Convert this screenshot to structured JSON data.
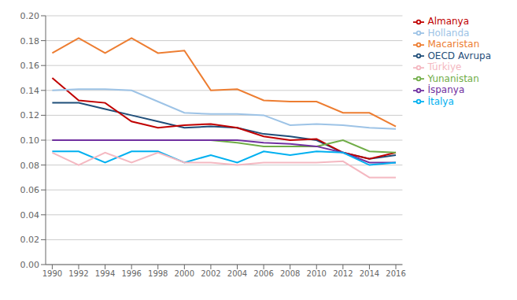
{
  "chart_data": {
    "type": "line",
    "x": [
      1990,
      1992,
      1994,
      1996,
      1998,
      2000,
      2002,
      2004,
      2006,
      2008,
      2010,
      2012,
      2014,
      2016
    ],
    "series": [
      {
        "name": "OECD Avrupa",
        "color": "#1f4e79",
        "values": [
          0.13,
          0.13,
          0.125,
          0.12,
          0.115,
          0.11,
          0.111,
          0.11,
          0.105,
          0.103,
          0.1,
          0.09,
          0.085,
          0.088
        ]
      },
      {
        "name": "Almanya",
        "color": "#c00000",
        "values": [
          0.15,
          0.132,
          0.13,
          0.115,
          0.11,
          0.112,
          0.113,
          0.11,
          0.103,
          0.1,
          0.101,
          0.09,
          0.085,
          0.09
        ]
      },
      {
        "name": "Yunanistan",
        "color": "#70ad47",
        "values": [
          0.1,
          0.1,
          0.1,
          0.1,
          0.1,
          0.1,
          0.1,
          0.098,
          0.095,
          0.095,
          0.095,
          0.1,
          0.091,
          0.09
        ]
      },
      {
        "name": "İspanya",
        "color": "#7030a0",
        "values": [
          0.1,
          0.1,
          0.1,
          0.1,
          0.1,
          0.1,
          0.1,
          0.1,
          0.098,
          0.097,
          0.095,
          0.09,
          0.082,
          0.082
        ]
      },
      {
        "name": "İtalya",
        "color": "#00b0f0",
        "values": [
          0.091,
          0.091,
          0.082,
          0.091,
          0.091,
          0.082,
          0.088,
          0.082,
          0.091,
          0.088,
          0.091,
          0.09,
          0.08,
          0.082
        ]
      },
      {
        "name": "Macaristan",
        "color": "#ed7d31",
        "values": [
          0.17,
          0.182,
          0.17,
          0.182,
          0.17,
          0.172,
          0.14,
          0.141,
          0.132,
          0.131,
          0.131,
          0.122,
          0.122,
          0.111
        ]
      },
      {
        "name": "Hollanda",
        "color": "#9dc3e6",
        "values": [
          0.14,
          0.141,
          0.141,
          0.14,
          0.131,
          0.122,
          0.121,
          0.121,
          0.12,
          0.112,
          0.113,
          0.112,
          0.11,
          0.109
        ]
      },
      {
        "name": "Türkiye",
        "color": "#f4b8c1",
        "values": [
          0.09,
          0.08,
          0.09,
          0.082,
          0.09,
          0.082,
          0.082,
          0.08,
          0.082,
          0.082,
          0.082,
          0.083,
          0.07,
          0.07
        ]
      }
    ],
    "xlim": [
      1989.5,
      2016.5
    ],
    "xticks": [
      1990,
      1992,
      1994,
      1996,
      1998,
      2000,
      2002,
      2004,
      2006,
      2008,
      2010,
      2012,
      2014,
      2016
    ],
    "ylim": [
      0.0,
      0.2
    ],
    "yticks": [
      {
        "value": 0.0,
        "label": "0.00"
      },
      {
        "value": 0.02,
        "label": "0.02"
      },
      {
        "value": 0.04,
        "label": "0.04"
      },
      {
        "value": 0.06,
        "label": "0.06"
      },
      {
        "value": 0.08,
        "label": "0.08"
      },
      {
        "value": 0.1,
        "label": "0.10"
      },
      {
        "value": 0.12,
        "label": "0.12"
      },
      {
        "value": 0.14,
        "label": "0.14"
      },
      {
        "value": 0.16,
        "label": "0.16"
      },
      {
        "value": 0.18,
        "label": "0.18"
      },
      {
        "value": 0.2,
        "label": "0.20"
      }
    ],
    "grid": true,
    "legend": "right"
  }
}
